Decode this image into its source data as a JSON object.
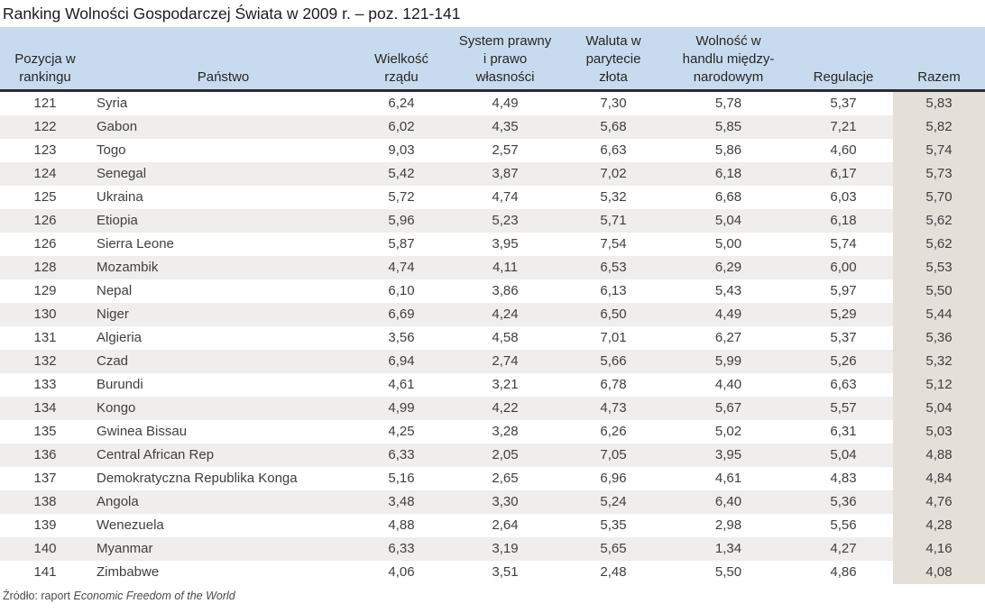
{
  "title": "Ranking Wolności Gospodarczej Świata w 2009 r. – poz. 121-141",
  "table": {
    "columns": [
      "Pozycja w\nrankingu",
      "Państwo",
      "Wielkość\nrządu",
      "System prawny\ni prawo\nwłasności",
      "Waluta w\nparytecie\nzłota",
      "Wolność w\nhandlu między-\nnarodowym",
      "Regulacje",
      "Razem"
    ],
    "rows": [
      [
        "121",
        "Syria",
        "6,24",
        "4,49",
        "7,30",
        "5,78",
        "5,37",
        "5,83"
      ],
      [
        "122",
        "Gabon",
        "6,02",
        "4,35",
        "5,68",
        "5,85",
        "7,21",
        "5,82"
      ],
      [
        "123",
        "Togo",
        "9,03",
        "2,57",
        "6,63",
        "5,86",
        "4,60",
        "5,74"
      ],
      [
        "124",
        "Senegal",
        "5,42",
        "3,87",
        "7,02",
        "6,18",
        "6,17",
        "5,73"
      ],
      [
        "125",
        "Ukraina",
        "5,72",
        "4,74",
        "5,32",
        "6,68",
        "6,03",
        "5,70"
      ],
      [
        "126",
        "Etiopia",
        "5,96",
        "5,23",
        "5,71",
        "5,04",
        "6,18",
        "5,62"
      ],
      [
        "126",
        "Sierra Leone",
        "5,87",
        "3,95",
        "7,54",
        "5,00",
        "5,74",
        "5,62"
      ],
      [
        "128",
        "Mozambik",
        "4,74",
        "4,11",
        "6,53",
        "6,29",
        "6,00",
        "5,53"
      ],
      [
        "129",
        "Nepal",
        "6,10",
        "3,86",
        "6,13",
        "5,43",
        "5,97",
        "5,50"
      ],
      [
        "130",
        "Niger",
        "6,69",
        "4,24",
        "6,50",
        "4,49",
        "5,29",
        "5,44"
      ],
      [
        "131",
        "Algieria",
        "3,56",
        "4,58",
        "7,01",
        "6,27",
        "5,37",
        "5,36"
      ],
      [
        "132",
        "Czad",
        "6,94",
        "2,74",
        "5,66",
        "5,99",
        "5,26",
        "5,32"
      ],
      [
        "133",
        "Burundi",
        "4,61",
        "3,21",
        "6,78",
        "4,40",
        "6,63",
        "5,12"
      ],
      [
        "134",
        "Kongo",
        "4,99",
        "4,22",
        "4,73",
        "5,67",
        "5,57",
        "5,04"
      ],
      [
        "135",
        "Gwinea Bissau",
        "4,25",
        "3,28",
        "6,26",
        "5,02",
        "6,31",
        "5,03"
      ],
      [
        "136",
        "Central African Rep",
        "6,33",
        "2,05",
        "7,05",
        "3,95",
        "5,04",
        "4,88"
      ],
      [
        "137",
        "Demokratyczna Republika Konga",
        "5,16",
        "2,65",
        "6,96",
        "4,61",
        "4,83",
        "4,84"
      ],
      [
        "138",
        "Angola",
        "3,48",
        "3,30",
        "5,24",
        "6,40",
        "5,36",
        "4,76"
      ],
      [
        "139",
        "Wenezuela",
        "4,88",
        "2,64",
        "5,35",
        "2,98",
        "5,56",
        "4,28"
      ],
      [
        "140",
        "Myanmar",
        "6,33",
        "3,19",
        "5,65",
        "1,34",
        "4,27",
        "4,16"
      ],
      [
        "141",
        "Zimbabwe",
        "4,06",
        "3,51",
        "2,48",
        "5,50",
        "4,86",
        "4,08"
      ]
    ]
  },
  "footer": {
    "source_prefix": "Źródło: raport ",
    "source_name": "Economic Freedom of the World"
  },
  "colors": {
    "header_bg": "#c8dbee",
    "header_border": "#2b2b31",
    "row_alt_bg": "#efeeed",
    "total_col_bg": "#e5dfda",
    "text": "#3f3f3f"
  }
}
